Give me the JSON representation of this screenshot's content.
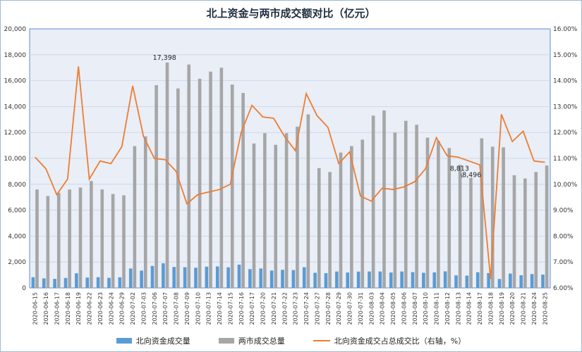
{
  "chart_data": {
    "type": "bar",
    "title": "北上资金与两市成交额对比（亿元）",
    "x": [
      "2020-06-15",
      "2020-06-16",
      "2020-06-17",
      "2020-06-18",
      "2020-06-19",
      "2020-06-22",
      "2020-06-23",
      "2020-06-24",
      "2020-06-29",
      "2020-07-02",
      "2020-07-03",
      "2020-07-06",
      "2020-07-07",
      "2020-07-08",
      "2020-07-09",
      "2020-07-10",
      "2020-07-13",
      "2020-07-14",
      "2020-07-15",
      "2020-07-16",
      "2020-07-17",
      "2020-07-20",
      "2020-07-21",
      "2020-07-22",
      "2020-07-23",
      "2020-07-24",
      "2020-07-27",
      "2020-07-28",
      "2020-07-29",
      "2020-07-30",
      "2020-07-31",
      "2020-08-03",
      "2020-08-04",
      "2020-08-05",
      "2020-08-06",
      "2020-08-07",
      "2020-08-10",
      "2020-08-11",
      "2020-08-12",
      "2020-08-13",
      "2020-08-14",
      "2020-08-17",
      "2020-08-18",
      "2020-08-19",
      "2020-08-20",
      "2020-08-21",
      "2020-08-24",
      "2020-08-25"
    ],
    "series": [
      {
        "name": "北向资金成交量",
        "axis": "left",
        "color": "#5b9bd5",
        "values": [
          830,
          740,
          700,
          770,
          1130,
          800,
          830,
          780,
          820,
          1500,
          1340,
          1700,
          1900,
          1620,
          1600,
          1560,
          1640,
          1660,
          1590,
          1800,
          1450,
          1500,
          1340,
          1400,
          1380,
          1600,
          1170,
          1140,
          1270,
          1190,
          1260,
          1270,
          1270,
          1190,
          1270,
          1220,
          1170,
          1200,
          1280,
          970,
          950,
          1210,
          1150,
          690,
          1110,
          980,
          1070,
          1030
        ]
      },
      {
        "name": "两市成交总量",
        "axis": "left",
        "color": "#a6a6a6",
        "values": [
          7600,
          7100,
          7350,
          7600,
          7750,
          8250,
          7600,
          7250,
          7150,
          10950,
          11700,
          15650,
          17398,
          15400,
          17250,
          16150,
          16700,
          17000,
          15700,
          15050,
          11150,
          11950,
          11050,
          11950,
          12450,
          13400,
          9250,
          8950,
          10450,
          10950,
          11450,
          13300,
          13700,
          12000,
          12900,
          12600,
          11600,
          11350,
          10800,
          9500,
          8496,
          11550,
          10900,
          10850,
          8700,
          8450,
          8950,
          9450
        ]
      },
      {
        "name": "北向资金成交占总成交比（右轴，%）",
        "axis": "right",
        "color": "#ed7d31",
        "values": [
          11.05,
          10.6,
          9.6,
          10.2,
          14.55,
          10.2,
          10.9,
          10.8,
          11.45,
          13.8,
          11.85,
          11.0,
          10.95,
          10.5,
          9.25,
          9.6,
          9.7,
          9.8,
          10.0,
          12.0,
          13.05,
          12.6,
          12.55,
          11.85,
          11.3,
          13.5,
          12.65,
          12.2,
          10.8,
          11.25,
          9.55,
          9.35,
          9.85,
          9.8,
          9.9,
          10.1,
          10.6,
          11.8,
          11.1,
          11.05,
          10.9,
          10.75,
          6.35,
          12.7,
          11.65,
          12.05,
          10.9,
          10.85
        ]
      }
    ],
    "annotations": [
      "17,398",
      "8,813",
      "8,496"
    ],
    "ylim_left": [
      0,
      20000
    ],
    "ylim_right": [
      6,
      16
    ],
    "yticks_left": [
      "0",
      "2,000",
      "4,000",
      "6,000",
      "8,000",
      "10,000",
      "12,000",
      "14,000",
      "16,000",
      "18,000",
      "20,000"
    ],
    "yticks_right": [
      "6.00%",
      "7.00%",
      "8.00%",
      "9.00%",
      "10.00%",
      "11.00%",
      "12.00%",
      "13.00%",
      "14.00%",
      "15.00%",
      "16.00%"
    ],
    "grid": true,
    "legend_position": "bottom"
  }
}
